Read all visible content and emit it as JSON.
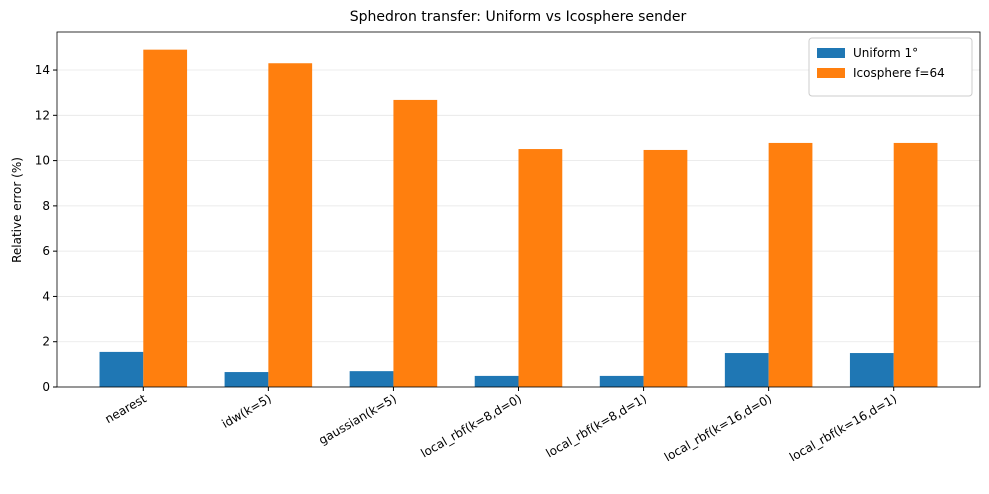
{
  "chart_data": {
    "type": "bar",
    "title": "Sphedron transfer: Uniform vs Icosphere sender",
    "y_label": "Relative error (%)",
    "categories": [
      "nearest",
      "idw(k=5)",
      "gaussian(k=5)",
      "local_rbf(k=8,d=0)",
      "local_rbf(k=8,d=1)",
      "local_rbf(k=16,d=0)",
      "local_rbf(k=16,d=1)"
    ],
    "series": [
      {
        "name": "Uniform 1°",
        "color": "#1f77b4",
        "values": [
          1.55,
          0.66,
          0.7,
          0.49,
          0.49,
          1.5,
          1.5
        ]
      },
      {
        "name": "Icosphere f=64",
        "color": "#ff7f0e",
        "values": [
          14.9,
          14.3,
          12.68,
          10.51,
          10.47,
          10.78,
          10.78
        ]
      }
    ],
    "ylim": [
      0,
      15.68
    ],
    "yticks": [
      0,
      2,
      4,
      6,
      8,
      10,
      12,
      14
    ],
    "grid": true,
    "legend": "upper right"
  }
}
